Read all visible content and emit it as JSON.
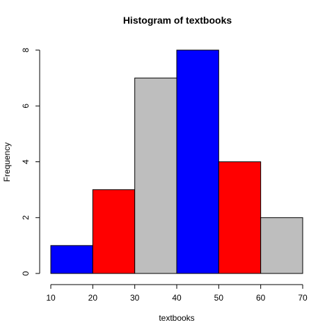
{
  "chart_data": {
    "type": "bar",
    "title": "Histogram of textbooks",
    "xlabel": "textbooks",
    "ylabel": "Frequency",
    "bins": [
      {
        "start": 10,
        "end": 20,
        "count": 1,
        "color": "#0000FF"
      },
      {
        "start": 20,
        "end": 30,
        "count": 3,
        "color": "#FF0000"
      },
      {
        "start": 30,
        "end": 40,
        "count": 7,
        "color": "#BEBEBE"
      },
      {
        "start": 40,
        "end": 50,
        "count": 8,
        "color": "#0000FF"
      },
      {
        "start": 50,
        "end": 60,
        "count": 4,
        "color": "#FF0000"
      },
      {
        "start": 60,
        "end": 70,
        "count": 2,
        "color": "#BEBEBE"
      }
    ],
    "xlim": [
      10,
      70
    ],
    "ylim": [
      0,
      8
    ],
    "xticks": [
      "10",
      "20",
      "30",
      "40",
      "50",
      "60",
      "70"
    ],
    "yticks": [
      "0",
      "2",
      "4",
      "6",
      "8"
    ],
    "grid": false,
    "legend": "none"
  }
}
